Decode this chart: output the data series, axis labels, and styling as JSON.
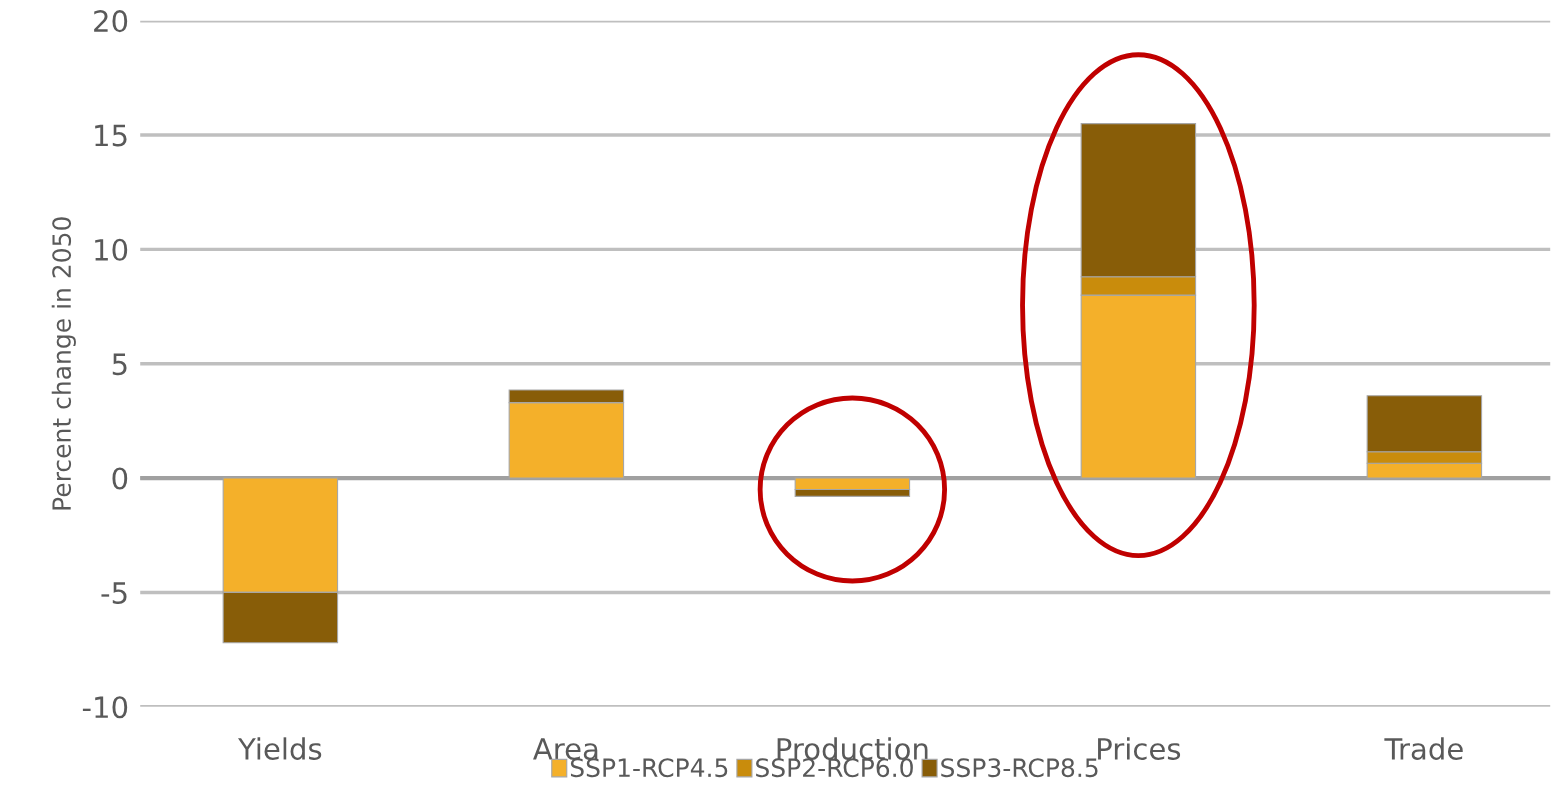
{
  "chart_data": {
    "type": "bar",
    "stacked": true,
    "ylabel": "Percent change in 2050",
    "categories": [
      "Yields",
      "Area",
      "Production",
      "Prices",
      "Trade"
    ],
    "series": [
      {
        "name": "SSP1-RCP4.5",
        "color": "#f4b02a",
        "values": [
          -5.0,
          3.3,
          -0.5,
          8.0,
          0.65
        ]
      },
      {
        "name": "SSP2-RCP6.0",
        "color": "#c98c0c",
        "values": [
          null,
          null,
          null,
          0.8,
          0.5
        ]
      },
      {
        "name": "SSP3-RCP8.5",
        "color": "#885d08",
        "values": [
          -2.2,
          0.55,
          -0.3,
          6.7,
          2.45
        ]
      }
    ],
    "ylim": [
      -10,
      20
    ],
    "yticks": [
      -10,
      -5,
      0,
      5,
      10,
      15,
      20
    ],
    "grid": "y",
    "legend": "bottom"
  }
}
